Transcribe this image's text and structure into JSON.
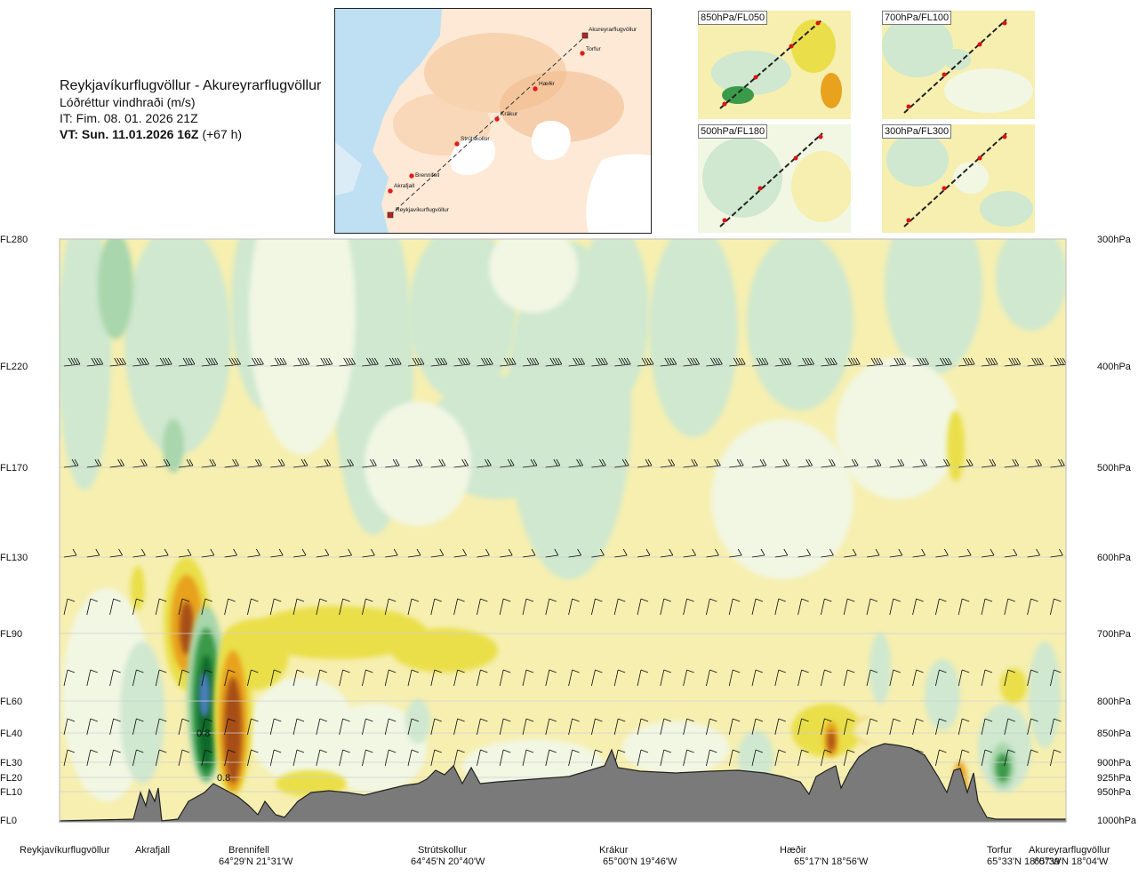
{
  "header": {
    "route_title": "Reykjavíkurflugvöllur - Akureyrarflugvöllur",
    "subtitle": "Lóðréttur vindhraði (m/s)",
    "issue_time": "IT: Fim. 08. 01. 2026 21Z",
    "valid_time": "VT: Sun. 11.01.2026 16Z",
    "lead_time": "(+67 h)"
  },
  "route_map": {
    "points": [
      "Reykjavíkurflugvöllur",
      "Akrafjall",
      "Brennifell",
      "Strútskollur",
      "Krákur",
      "Hæðir",
      "Torfur",
      "Akureyrarflugvöllur"
    ]
  },
  "mini_maps": [
    {
      "label": "850hPa/FL050"
    },
    {
      "label": "700hPa/FL100"
    },
    {
      "label": "500hPa/FL180"
    },
    {
      "label": "300hPa/FL300"
    }
  ],
  "chart_data": {
    "type": "heatmap",
    "title": "Lóðréttur vindhraði (m/s)",
    "left_axis_levels": [
      "FL280",
      "FL220",
      "FL170",
      "FL130",
      "FL90",
      "FL60",
      "FL40",
      "FL30",
      "FL20",
      "FL10",
      "FL0"
    ],
    "right_axis_levels": [
      "300hPa",
      "400hPa",
      "500hPa",
      "600hPa",
      "700hPa",
      "800hPa",
      "850hPa",
      "900hPa",
      "925hPa",
      "950hPa",
      "1000hPa"
    ],
    "locations": [
      {
        "name": "Reykjavíkurflugvöllur",
        "coord": ""
      },
      {
        "name": "Akrafjall",
        "coord": ""
      },
      {
        "name": "Brennifell",
        "coord": "64°29'N 21°31'W"
      },
      {
        "name": "Strútskollur",
        "coord": "64°45'N 20°40'W"
      },
      {
        "name": "Krákur",
        "coord": "65°00'N 19°46'W"
      },
      {
        "name": "Hæðir",
        "coord": "65°17'N 18°56'W"
      },
      {
        "name": "Torfur",
        "coord": "65°33'N 18°07'W"
      },
      {
        "name": "Akureyrarflugvöllur",
        "coord": "65°39'N 18°04'W"
      }
    ],
    "annotations": [
      "0.8",
      "0.8"
    ],
    "colors": {
      "weak_down": "#f6efb0",
      "down_1": "#eadf4a",
      "down_2": "#e8a21e",
      "down_3": "#a74d12",
      "weak_up": "#f2f7e4",
      "up_1": "#cfe8cf",
      "up_2": "#a9d6ac",
      "up_3": "#3b9a4a",
      "up_4": "#0f6b2a",
      "up_5": "#4a7fc0",
      "terrain": "#7a7a7a"
    }
  }
}
